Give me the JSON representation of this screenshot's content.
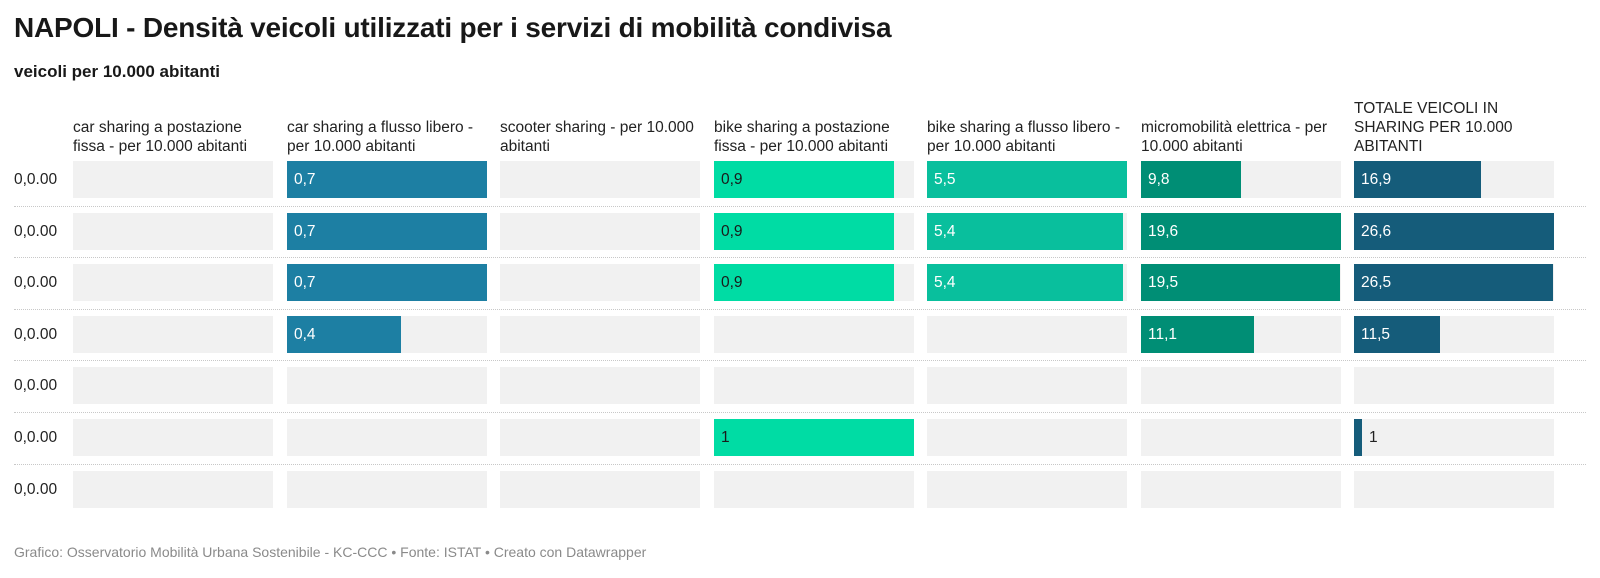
{
  "title": "NAPOLI - Densità veicoli utilizzati per i servizi di mobilità condivisa",
  "subtitle": "veicoli per 10.000 abitanti",
  "footer": "Grafico: Osservatorio Mobilità Urbana Sostenibile - KC-CCC • Fonte: ISTAT • Creato con Datawrapper",
  "chart_data": {
    "type": "bar",
    "rows": [
      "0,0.00",
      "0,0.00",
      "0,0.00",
      "0,0.00",
      "0,0.00",
      "0,0.00",
      "0,0.00"
    ],
    "columns": [
      {
        "name": "car sharing a postazione fissa - per 10.000 abitanti",
        "color": "#1d7fa3",
        "max": 1,
        "values": [
          null,
          null,
          null,
          null,
          null,
          null,
          null
        ],
        "labels": [
          "",
          "",
          "",
          "",
          "",
          "",
          ""
        ]
      },
      {
        "name": "car sharing a flusso libero - per 10.000 abitanti",
        "color": "#1d7fa3",
        "max": 0.7,
        "values": [
          0.7,
          0.7,
          0.7,
          0.4,
          null,
          null,
          null
        ],
        "labels": [
          "0,7",
          "0,7",
          "0,7",
          "0,4",
          "",
          "",
          ""
        ]
      },
      {
        "name": "scooter sharing - per 10.000 abitanti",
        "color": "#1d7fa3",
        "max": 1,
        "values": [
          null,
          null,
          null,
          null,
          null,
          null,
          null
        ],
        "labels": [
          "",
          "",
          "",
          "",
          "",
          "",
          ""
        ]
      },
      {
        "name": "bike sharing a postazione fissa - per 10.000 abitanti",
        "color": "#00dca4",
        "max": 1,
        "values": [
          0.9,
          0.9,
          0.9,
          null,
          null,
          1,
          null
        ],
        "labels": [
          "0,9",
          "0,9",
          "0,9",
          "",
          "",
          "1",
          ""
        ]
      },
      {
        "name": "bike sharing a flusso libero - per 10.000 abitanti",
        "color": "#09bf9d",
        "max": 5.5,
        "values": [
          5.5,
          5.4,
          5.4,
          null,
          null,
          null,
          null
        ],
        "labels": [
          "5,5",
          "5,4",
          "5,4",
          "",
          "",
          "",
          ""
        ]
      },
      {
        "name": "micromobilità elettrica - per 10.000 abitanti",
        "color": "#008e75",
        "max": 19.6,
        "values": [
          9.8,
          19.6,
          19.5,
          11.1,
          null,
          null,
          null
        ],
        "labels": [
          "9,8",
          "19,6",
          "19,5",
          "11,1",
          "",
          "",
          ""
        ]
      },
      {
        "name": "TOTALE VEICOLI IN SHARING PER 10.000 ABITANTI",
        "color": "#155c7a",
        "max": 26.6,
        "values": [
          16.9,
          26.6,
          26.5,
          11.5,
          null,
          1,
          null
        ],
        "labels": [
          "16,9",
          "26,6",
          "26,5",
          "11,5",
          "",
          "1",
          ""
        ]
      }
    ]
  }
}
